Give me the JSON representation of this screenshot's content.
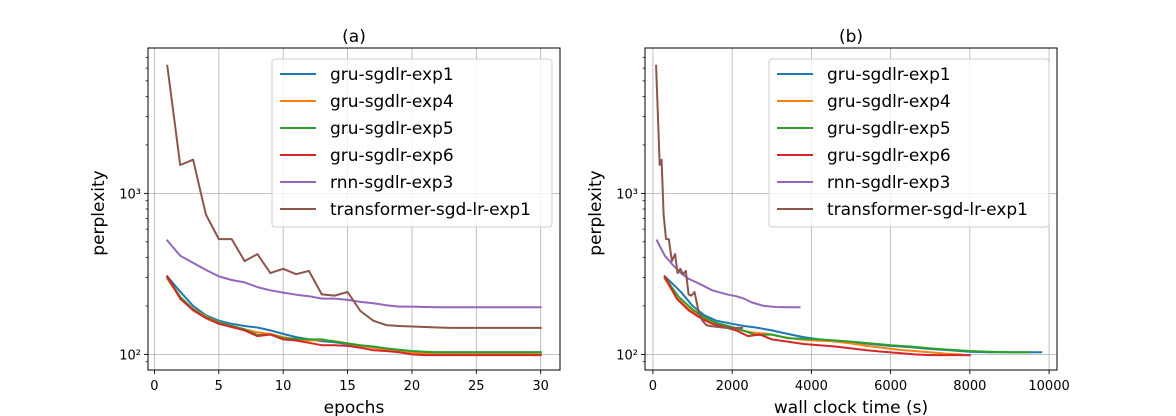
{
  "chart_data": [
    {
      "type": "line",
      "title": "(a)",
      "xlabel": "epochs",
      "ylabel": "perplexity",
      "yscale": "log",
      "xlim": [
        -0.5,
        31.5
      ],
      "ylim": [
        80,
        8000
      ],
      "xticks": [
        0,
        5,
        10,
        15,
        20,
        25,
        30
      ],
      "yticks": [
        {
          "value": 100,
          "label": "10²"
        },
        {
          "value": 1000,
          "label": "10³"
        }
      ],
      "grid": true,
      "legend_position": "top-right",
      "series": [
        {
          "name": "gru-sgdlr-exp1",
          "color": "#1f77b4",
          "x": [
            1,
            2,
            3,
            4,
            5,
            6,
            7,
            8,
            9,
            10,
            11,
            12,
            13,
            14,
            15,
            16,
            17,
            18,
            19,
            20,
            21,
            22,
            23,
            24,
            25,
            26,
            27,
            28,
            29,
            30
          ],
          "y": [
            305,
            245,
            200,
            175,
            162,
            155,
            150,
            147,
            141,
            134,
            128,
            124,
            121,
            119,
            116,
            113,
            111,
            108,
            106,
            104,
            103,
            103,
            103,
            103,
            103,
            103,
            103,
            103,
            103,
            103
          ]
        },
        {
          "name": "gru-sgdlr-exp4",
          "color": "#ff7f0e",
          "x": [
            1,
            2,
            3,
            4,
            5,
            6,
            7,
            8,
            9,
            10,
            11,
            12,
            13,
            14,
            15,
            16,
            17,
            18,
            19,
            20,
            21,
            22,
            23,
            24,
            25,
            26,
            27,
            28,
            29,
            30
          ],
          "y": [
            295,
            225,
            192,
            172,
            158,
            150,
            143,
            137,
            134,
            128,
            124,
            122,
            123,
            121,
            117,
            113,
            110,
            107,
            105,
            103,
            101,
            100,
            100,
            100,
            100,
            100,
            100,
            100,
            100,
            100
          ]
        },
        {
          "name": "gru-sgdlr-exp5",
          "color": "#2ca02c",
          "x": [
            1,
            2,
            3,
            4,
            5,
            6,
            7,
            8,
            9,
            10,
            11,
            12,
            13,
            14,
            15,
            16,
            17,
            18,
            19,
            20,
            21,
            22,
            23,
            24,
            25,
            26,
            27,
            28,
            29,
            30
          ],
          "y": [
            300,
            228,
            190,
            170,
            157,
            150,
            143,
            132,
            133,
            126,
            125,
            124,
            124,
            120,
            117,
            114,
            112,
            109,
            107,
            105,
            104,
            103,
            103,
            103,
            103,
            103,
            103,
            103,
            103,
            103
          ]
        },
        {
          "name": "gru-sgdlr-exp6",
          "color": "#d62728",
          "x": [
            1,
            2,
            3,
            4,
            5,
            6,
            7,
            8,
            9,
            10,
            11,
            12,
            13,
            14,
            15,
            16,
            17,
            18,
            19,
            20,
            21,
            22,
            23,
            24,
            25,
            26,
            27,
            28,
            29,
            30
          ],
          "y": [
            305,
            222,
            188,
            168,
            155,
            148,
            141,
            130,
            133,
            124,
            122,
            118,
            114,
            114,
            113,
            110,
            106,
            105,
            103,
            100,
            99,
            99,
            99,
            99,
            99,
            99,
            99,
            99,
            99,
            99
          ]
        },
        {
          "name": "rnn-sgdlr-exp3",
          "color": "#9467bd",
          "x": [
            1,
            2,
            3,
            4,
            5,
            6,
            7,
            8,
            9,
            10,
            11,
            12,
            13,
            14,
            15,
            16,
            17,
            18,
            19,
            20,
            21,
            22,
            23,
            24,
            25,
            26,
            27,
            28,
            29,
            30
          ],
          "y": [
            510,
            410,
            370,
            335,
            305,
            290,
            280,
            262,
            250,
            242,
            235,
            230,
            222,
            222,
            218,
            212,
            208,
            202,
            198,
            198,
            197,
            196,
            196,
            196,
            196,
            196,
            196,
            196,
            196,
            196
          ]
        },
        {
          "name": "transformer-sgd-lr-exp1",
          "color": "#8c564b",
          "x": [
            1,
            2,
            3,
            4,
            5,
            6,
            7,
            8,
            9,
            10,
            11,
            12,
            13,
            14,
            15,
            16,
            17,
            18,
            19,
            20,
            21,
            22,
            23,
            24,
            25,
            26,
            27,
            28,
            29,
            30
          ],
          "y": [
            6200,
            1500,
            1620,
            740,
            520,
            520,
            380,
            420,
            320,
            340,
            315,
            330,
            236,
            232,
            244,
            186,
            162,
            152,
            150,
            149,
            148,
            147,
            146,
            146,
            146,
            146,
            146,
            146,
            146,
            146
          ]
        }
      ]
    },
    {
      "type": "line",
      "title": "(b)",
      "xlabel": "wall clock time (s)",
      "ylabel": "perplexity",
      "yscale": "log",
      "xlim": [
        -200,
        10200
      ],
      "ylim": [
        80,
        8000
      ],
      "xticks": [
        0,
        2000,
        4000,
        6000,
        8000,
        10000
      ],
      "yticks": [
        {
          "value": 100,
          "label": "10²"
        },
        {
          "value": 1000,
          "label": "10³"
        }
      ],
      "grid": true,
      "legend_position": "top-right",
      "series": [
        {
          "name": "gru-sgdlr-exp1",
          "color": "#1f77b4",
          "x": [
            300,
            700,
            1000,
            1300,
            1600,
            2000,
            2300,
            2600,
            3000,
            3400,
            3800,
            4200,
            4600,
            5000,
            5500,
            6000,
            6500,
            7000,
            7500,
            8000,
            8500,
            9000,
            9500,
            9800
          ],
          "y": [
            305,
            245,
            200,
            175,
            162,
            155,
            150,
            147,
            141,
            134,
            128,
            124,
            121,
            119,
            116,
            113,
            111,
            108,
            106,
            104,
            103,
            103,
            103,
            103
          ]
        },
        {
          "name": "gru-sgdlr-exp4",
          "color": "#ff7f0e",
          "x": [
            300,
            600,
            900,
            1200,
            1500,
            1800,
            2100,
            2500,
            2900,
            3300,
            3700,
            4100,
            4500,
            5000,
            5400,
            5800,
            6200,
            6600,
            7000,
            7400,
            7800
          ],
          "y": [
            295,
            225,
            192,
            172,
            158,
            150,
            143,
            137,
            134,
            128,
            124,
            122,
            121,
            117,
            113,
            110,
            107,
            105,
            103,
            101,
            100
          ]
        },
        {
          "name": "gru-sgdlr-exp5",
          "color": "#2ca02c",
          "x": [
            300,
            650,
            1000,
            1300,
            1600,
            1900,
            2200,
            2600,
            3000,
            3400,
            3800,
            4200,
            4600,
            5000,
            5500,
            6000,
            6500,
            7000,
            7500,
            8000,
            8500,
            9000,
            9500
          ],
          "y": [
            300,
            228,
            190,
            170,
            157,
            150,
            143,
            132,
            133,
            126,
            125,
            124,
            122,
            120,
            117,
            114,
            112,
            109,
            107,
            105,
            104,
            103,
            103
          ]
        },
        {
          "name": "gru-sgdlr-exp6",
          "color": "#d62728",
          "x": [
            300,
            600,
            900,
            1200,
            1500,
            1800,
            2100,
            2400,
            2700,
            3000,
            3400,
            3800,
            4200,
            4600,
            5000,
            5400,
            5800,
            6200,
            6600,
            7000,
            7400,
            8000
          ],
          "y": [
            305,
            222,
            188,
            168,
            155,
            148,
            141,
            130,
            133,
            124,
            120,
            116,
            114,
            112,
            109,
            106,
            104,
            102,
            100,
            99,
            99,
            99
          ]
        },
        {
          "name": "rnn-sgdlr-exp3",
          "color": "#9467bd",
          "x": [
            100,
            300,
            500,
            700,
            900,
            1100,
            1300,
            1500,
            1700,
            1900,
            2100,
            2300,
            2500,
            2800,
            3100,
            3400,
            3700
          ],
          "y": [
            510,
            410,
            360,
            320,
            295,
            280,
            265,
            250,
            242,
            235,
            230,
            222,
            210,
            200,
            197,
            196,
            196
          ]
        },
        {
          "name": "transformer-sgd-lr-exp1",
          "color": "#8c564b",
          "x": [
            80,
            170,
            220,
            270,
            330,
            400,
            480,
            560,
            620,
            690,
            760,
            830,
            900,
            970,
            1050,
            1150,
            1250,
            1350,
            1450,
            1550,
            1650,
            1750,
            1850,
            1950,
            2100,
            2250
          ],
          "y": [
            6200,
            1500,
            1620,
            740,
            520,
            520,
            380,
            420,
            320,
            340,
            315,
            330,
            236,
            232,
            244,
            186,
            162,
            152,
            150,
            149,
            148,
            147,
            146,
            146,
            146,
            146
          ]
        }
      ]
    }
  ]
}
